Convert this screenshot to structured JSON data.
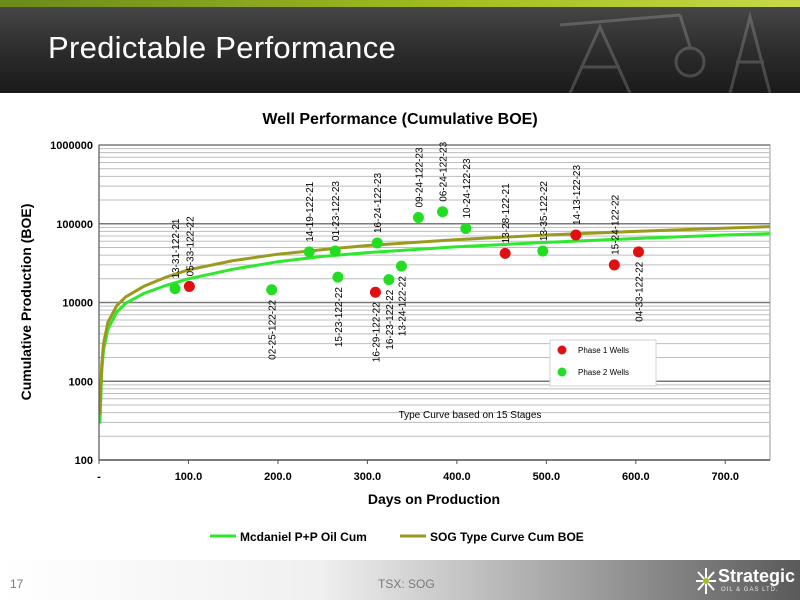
{
  "slide": {
    "title": "Predictable Performance",
    "page_number": "17",
    "ticker": "TSX: SOG",
    "logo": {
      "name": "Strategic",
      "sub": "OIL & GAS LTD."
    }
  },
  "colors": {
    "header_dark": "#2c2c2c",
    "accent_green": "#a5c021",
    "mcdaniel_line": "#2ee82e",
    "type_curve_line": "#9a9a1e",
    "phase1": "#e01010",
    "phase2": "#22dd22",
    "grid": "#8c8c8c"
  },
  "chart_data": {
    "type": "scatter",
    "title": "Well Performance (Cumulative BOE)",
    "xlabel": "Days on Production",
    "ylabel": "Cumulative Production (BOE)",
    "y_scale": "log",
    "xlim": [
      0,
      750
    ],
    "ylim": [
      100,
      1000000
    ],
    "x_ticks": [
      {
        "value": 0,
        "label": "-"
      },
      {
        "value": 100,
        "label": "100.0"
      },
      {
        "value": 200,
        "label": "200.0"
      },
      {
        "value": 300,
        "label": "300.0"
      },
      {
        "value": 400,
        "label": "400.0"
      },
      {
        "value": 500,
        "label": "500.0"
      },
      {
        "value": 600,
        "label": "600.0"
      },
      {
        "value": 700,
        "label": "700.0"
      }
    ],
    "y_ticks": [
      {
        "value": 100,
        "label": "100"
      },
      {
        "value": 1000,
        "label": "1000"
      },
      {
        "value": 10000,
        "label": "10000"
      },
      {
        "value": 100000,
        "label": "100000"
      },
      {
        "value": 1000000,
        "label": "1000000"
      }
    ],
    "grid": true,
    "legend_position": "bottom",
    "series": [
      {
        "name": "Mcdaniel P+P Oil Cum",
        "type": "line",
        "color": "#2ee82e",
        "x": [
          1,
          3,
          5,
          10,
          20,
          30,
          50,
          75,
          100,
          150,
          200,
          250,
          300,
          400,
          500,
          600,
          700,
          750
        ],
        "y": [
          290,
          1300,
          2500,
          4600,
          7600,
          9800,
          13000,
          16500,
          20000,
          26500,
          33000,
          38500,
          43000,
          51000,
          58000,
          65000,
          72000,
          75000
        ]
      },
      {
        "name": "SOG Type Curve Cum BOE",
        "type": "line",
        "color": "#9a9a1e",
        "x": [
          1,
          3,
          5,
          10,
          20,
          30,
          50,
          75,
          100,
          150,
          200,
          250,
          300,
          400,
          500,
          600,
          700,
          750
        ],
        "y": [
          380,
          1600,
          3000,
          5600,
          9200,
          11800,
          16000,
          21000,
          26000,
          34000,
          41000,
          47000,
          53000,
          63000,
          72000,
          80000,
          88000,
          92000
        ]
      }
    ],
    "points": [
      {
        "label": "13-31-122-21",
        "x": 85,
        "y": 15000,
        "phase": 2
      },
      {
        "label": "05-33-122-22",
        "x": 101,
        "y": 16000,
        "phase": 1
      },
      {
        "label": "02-25-122-22",
        "x": 193,
        "y": 14500,
        "phase": 2
      },
      {
        "label": "14-19-122-21",
        "x": 235,
        "y": 44000,
        "phase": 2
      },
      {
        "label": "01-23-122-23",
        "x": 264,
        "y": 45000,
        "phase": 2
      },
      {
        "label": "15-23-122-22",
        "x": 267,
        "y": 21000,
        "phase": 2
      },
      {
        "label": "16-24-122-23",
        "x": 311,
        "y": 57000,
        "phase": 2
      },
      {
        "label": "16-29-122-22",
        "x": 309,
        "y": 13500,
        "phase": 1
      },
      {
        "label": "16-23-122-22",
        "x": 324,
        "y": 19500,
        "phase": 2
      },
      {
        "label": "13-24-122-22",
        "x": 338,
        "y": 29000,
        "phase": 2
      },
      {
        "label": "09-24-122-23",
        "x": 357,
        "y": 120000,
        "phase": 2
      },
      {
        "label": "06-24-122-23",
        "x": 384,
        "y": 142000,
        "phase": 2
      },
      {
        "label": "10-24-122-23",
        "x": 410,
        "y": 87000,
        "phase": 2
      },
      {
        "label": "13-28-122-21",
        "x": 454,
        "y": 42000,
        "phase": 1
      },
      {
        "label": "13-35-122-22",
        "x": 496,
        "y": 45000,
        "phase": 2
      },
      {
        "label": "14-13-122-23",
        "x": 533,
        "y": 72000,
        "phase": 1
      },
      {
        "label": "15-24-122-22",
        "x": 576,
        "y": 30000,
        "phase": 1
      },
      {
        "label": "04-33-122-22",
        "x": 603,
        "y": 44000,
        "phase": 1
      }
    ],
    "phase_legend": [
      {
        "label": "Phase 1 Wells",
        "phase": 1
      },
      {
        "label": "Phase 2 Wells",
        "phase": 2
      }
    ],
    "annotation": "Type Curve based on 15 Stages"
  }
}
